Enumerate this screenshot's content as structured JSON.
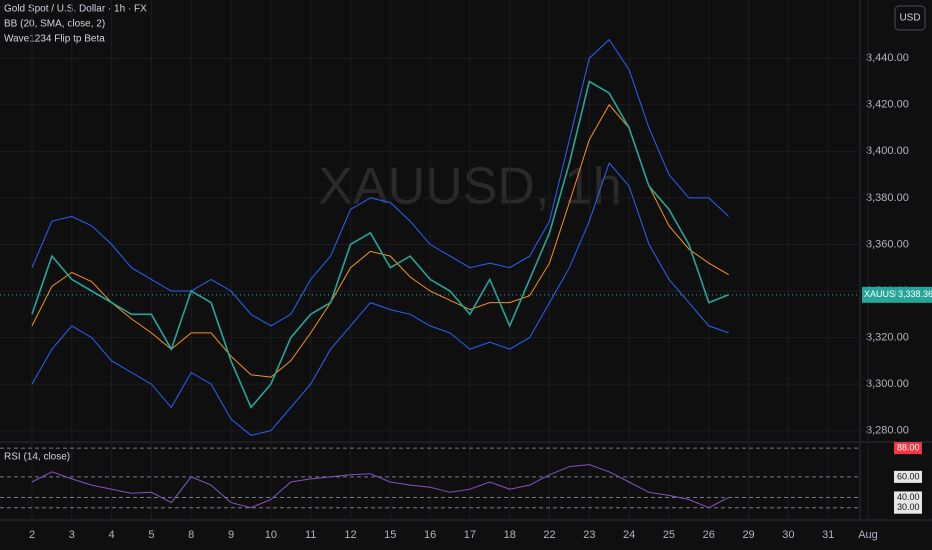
{
  "header": {
    "symbol_line": "Gold Spot / U.S. Dollar · 1h · FX",
    "indicator_1": "BB (20, SMA, close, 2)",
    "indicator_2": "Wave1234 Flip tp Beta",
    "currency_button": "USD",
    "watermark": "XAUUSD, 1h"
  },
  "chart_data": {
    "type": "line",
    "categories": [
      "2",
      null,
      "3",
      null,
      "4",
      null,
      "5",
      null,
      "8",
      null,
      "9",
      null,
      "10",
      null,
      "11",
      null,
      "12",
      null,
      "15",
      null,
      "16",
      null,
      "17",
      null,
      "18",
      null,
      "22",
      null,
      "23",
      null,
      "24",
      null,
      "25",
      null,
      "26",
      null,
      "29",
      null,
      "30",
      null,
      "31",
      null,
      "Aug"
    ],
    "series": [
      {
        "color": "#2962ff",
        "values": [
          3350,
          3370,
          3372,
          3368,
          3360,
          3350,
          3345,
          3340,
          3340,
          3345,
          3340,
          3330,
          3325,
          3330,
          3345,
          3355,
          3375,
          3380,
          3378,
          3370,
          3360,
          3355,
          3350,
          3352,
          3350,
          3355,
          3370,
          3405,
          3440,
          3448,
          3435,
          3410,
          3390,
          3380,
          3380,
          3372,
          null,
          null,
          null,
          null,
          null,
          null,
          null
        ]
      },
      {
        "color": "#2962ff",
        "values": [
          3300,
          3315,
          3325,
          3320,
          3310,
          3305,
          3300,
          3290,
          3305,
          3300,
          3285,
          3278,
          3280,
          3290,
          3300,
          3315,
          3325,
          3335,
          3332,
          3330,
          3325,
          3322,
          3315,
          3318,
          3315,
          3320,
          3335,
          3350,
          3370,
          3395,
          3385,
          3360,
          3345,
          3335,
          3325,
          3322,
          null,
          null,
          null,
          null,
          null,
          null,
          null
        ]
      },
      {
        "color": "#f7931a",
        "values": [
          3325,
          3342,
          3348,
          3344,
          3335,
          3328,
          3322,
          3315,
          3322,
          3322,
          3312,
          3304,
          3303,
          3310,
          3322,
          3335,
          3350,
          3357,
          3355,
          3346,
          3340,
          3336,
          3332,
          3335,
          3335,
          3338,
          3352,
          3378,
          3405,
          3420,
          3410,
          3385,
          3368,
          3358,
          3352,
          3347,
          null,
          null,
          null,
          null,
          null,
          null,
          null
        ]
      },
      {
        "color": "#26a69a",
        "values": [
          3330,
          3355,
          3345,
          3340,
          3335,
          3330,
          3330,
          3315,
          3340,
          3335,
          3310,
          3290,
          3300,
          3320,
          3330,
          3335,
          3360,
          3365,
          3350,
          3355,
          3345,
          3340,
          3330,
          3345,
          3325,
          3345,
          3365,
          3395,
          3430,
          3425,
          3410,
          3385,
          3375,
          3360,
          3335,
          3338.36,
          null,
          null,
          null,
          null,
          null,
          null,
          null
        ]
      }
    ],
    "ylim": [
      3276,
      3465
    ],
    "yticks": [
      {
        "value": 3440,
        "label": "3,440.00"
      },
      {
        "value": 3420,
        "label": "3,420.00"
      },
      {
        "value": 3400,
        "label": "3,400.00"
      },
      {
        "value": 3380,
        "label": "3,380.00"
      },
      {
        "value": 3360,
        "label": "3,360.00"
      },
      {
        "value": 3340,
        "label": "3,340.00"
      },
      {
        "value": 3320,
        "label": "3,320.00"
      },
      {
        "value": 3300,
        "label": "3,300.00"
      },
      {
        "value": 3280,
        "label": "3,280.00"
      }
    ],
    "grid": true,
    "price_tag": {
      "symbol": "XAUUSD",
      "value": 3338.36,
      "label": "3,338.36"
    },
    "rsi": {
      "title": "RSI (14, close)",
      "color": "#7e57c2",
      "values": [
        55,
        65,
        58,
        52,
        48,
        44,
        45,
        35,
        60,
        52,
        35,
        30,
        38,
        55,
        58,
        60,
        62,
        63,
        55,
        52,
        50,
        45,
        48,
        55,
        48,
        52,
        62,
        70,
        72,
        65,
        55,
        45,
        42,
        38,
        30,
        40,
        null,
        null,
        null,
        null,
        null,
        null,
        null
      ],
      "ylim": [
        20,
        92
      ],
      "yticks": [
        {
          "value": 88,
          "label": "88.00"
        },
        {
          "value": 60,
          "label": "60.00"
        },
        {
          "value": 40,
          "label": "40.00"
        },
        {
          "value": 30,
          "label": "30.00"
        }
      ]
    }
  }
}
